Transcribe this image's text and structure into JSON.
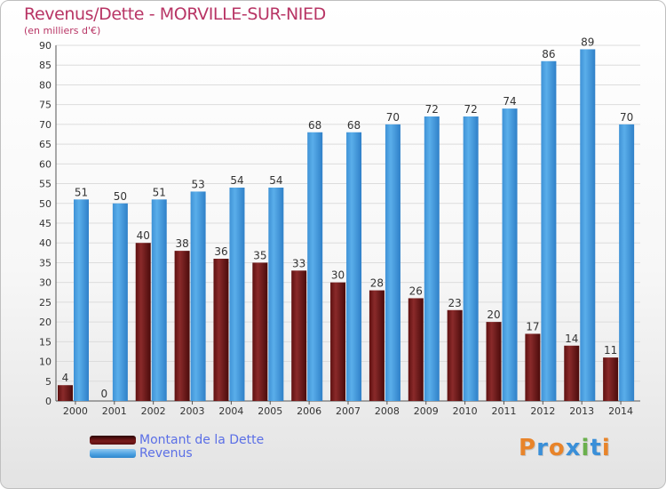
{
  "header": {
    "title": "Revenus/Dette - MORVILLE-SUR-NIED",
    "subtitle": "(en milliers d'€)"
  },
  "chart_data": {
    "type": "bar",
    "categories": [
      "2000",
      "2001",
      "2002",
      "2003",
      "2004",
      "2005",
      "2006",
      "2007",
      "2008",
      "2009",
      "2010",
      "2011",
      "2012",
      "2013",
      "2014"
    ],
    "series": [
      {
        "name": "Montant de la Dette",
        "color": "#7a1a1a",
        "values": [
          4,
          0,
          40,
          38,
          36,
          35,
          33,
          30,
          28,
          26,
          23,
          20,
          17,
          14,
          11
        ]
      },
      {
        "name": "Revenus",
        "color": "#4a9fe0",
        "values": [
          51,
          50,
          51,
          53,
          54,
          54,
          68,
          68,
          70,
          72,
          72,
          74,
          86,
          89,
          70
        ]
      }
    ],
    "ylim": [
      0,
      90
    ],
    "ytick_step": 5,
    "grid": true,
    "legend_position": "bottom-left"
  },
  "legend": {
    "items": [
      {
        "label": "Montant de la Dette",
        "color": "#5a0f10"
      },
      {
        "label": "Revenus",
        "color": "#4a9fe0"
      }
    ]
  },
  "logo": {
    "text": "Proxiti"
  }
}
